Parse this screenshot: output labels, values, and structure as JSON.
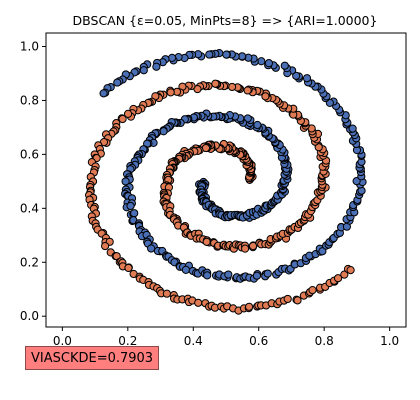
{
  "chart_data": {
    "type": "scatter",
    "title": "DBSCAN {ε=0.05, MinPts=8} => {ARI=1.0000}",
    "xlabel": "",
    "ylabel": "",
    "xlim": [
      -0.05,
      1.05
    ],
    "ylim": [
      -0.04,
      1.05
    ],
    "grid": false,
    "xticks": [
      "0.0",
      "0.2",
      "0.4",
      "0.6",
      "0.8",
      "1.0"
    ],
    "yticks": [
      "0.0",
      "0.2",
      "0.4",
      "0.6",
      "0.8",
      "1.0"
    ],
    "series": [
      {
        "color": "#e07b54",
        "curve": "spiral",
        "center": [
          0.5,
          0.5
        ],
        "angle_range_rad": [
          3.2,
          15.0
        ],
        "radius_range": [
          0.07,
          0.5
        ],
        "phase_rad": 3.14,
        "points_sampled": 420,
        "x_range": [
          0.0,
          0.81
        ],
        "y_range": [
          0.0,
          1.0
        ]
      },
      {
        "color": "#4a6fb5",
        "curve": "spiral",
        "center": [
          0.5,
          0.5
        ],
        "angle_range_rad": [
          3.2,
          15.0
        ],
        "radius_range": [
          0.07,
          0.5
        ],
        "phase_rad": 0.0,
        "points_sampled": 420,
        "x_range": [
          0.19,
          1.0
        ],
        "y_range": [
          0.03,
          0.86
        ]
      }
    ],
    "annotation": "VIASCKDE=0.7903"
  }
}
